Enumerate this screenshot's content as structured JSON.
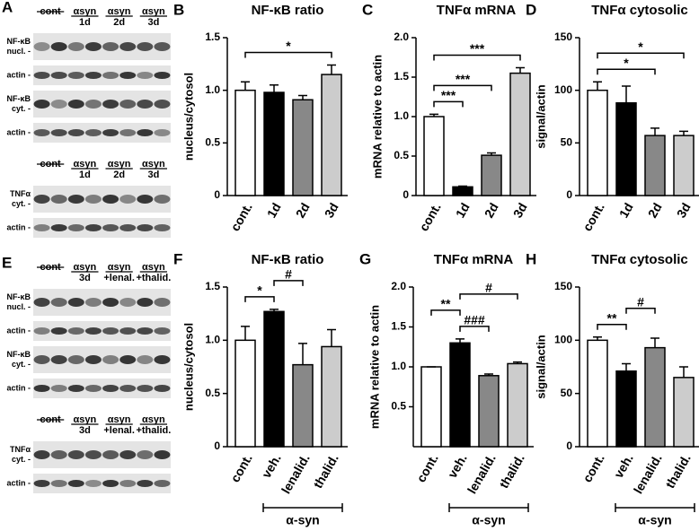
{
  "blots": [
    {
      "panel": "A",
      "groups": [
        {
          "headers": [
            {
              "lines": [
                "cont"
              ]
            },
            {
              "lines": [
                "αsyn",
                "1d"
              ]
            },
            {
              "lines": [
                "αsyn",
                "2d"
              ]
            },
            {
              "lines": [
                "αsyn",
                "3d"
              ]
            }
          ],
          "rows": [
            {
              "lines": [
                "NF-κB",
                "nucl. -"
              ]
            },
            {
              "lines": [
                "actin -"
              ]
            },
            {
              "lines": [
                "NF-κB",
                "cyt. -"
              ]
            },
            {
              "lines": [
                "actin -"
              ]
            }
          ]
        },
        {
          "headers": [
            {
              "lines": [
                "cont"
              ]
            },
            {
              "lines": [
                "αsyn",
                "1d"
              ]
            },
            {
              "lines": [
                "αsyn",
                "2d"
              ]
            },
            {
              "lines": [
                "αsyn",
                "3d"
              ]
            }
          ],
          "rows": [
            {
              "lines": [
                "TNFα",
                "cyt. -"
              ]
            },
            {
              "lines": [
                "actin -"
              ]
            }
          ]
        }
      ]
    },
    {
      "panel": "E",
      "groups": [
        {
          "headers": [
            {
              "lines": [
                "cont"
              ]
            },
            {
              "lines": [
                "αsyn",
                "3d"
              ]
            },
            {
              "lines": [
                "αsyn",
                "+lenal."
              ]
            },
            {
              "lines": [
                "αsyn",
                "+thalid."
              ]
            }
          ],
          "rows": [
            {
              "lines": [
                "NF-κB",
                "nucl. -"
              ]
            },
            {
              "lines": [
                "actin -"
              ]
            },
            {
              "lines": [
                "NF-κB",
                "cyt. -"
              ]
            },
            {
              "lines": [
                "actin -"
              ]
            }
          ]
        },
        {
          "headers": [
            {
              "lines": [
                "cont"
              ]
            },
            {
              "lines": [
                "αsyn",
                "3d"
              ]
            },
            {
              "lines": [
                "αsyn",
                "+lenal."
              ]
            },
            {
              "lines": [
                "αsyn",
                "+thalid."
              ]
            }
          ],
          "rows": [
            {
              "lines": [
                "TNFα",
                "cyt. -"
              ]
            },
            {
              "lines": [
                "actin -"
              ]
            }
          ]
        }
      ]
    }
  ],
  "chart_data": [
    {
      "type": "bar",
      "panel": "B",
      "title": "NF-κB ratio",
      "ylabel": "nucleus/cytosol",
      "categories": [
        "cont.",
        "1d",
        "2d",
        "3d"
      ],
      "values": [
        1.0,
        0.98,
        0.91,
        1.15
      ],
      "errors": [
        0.08,
        0.07,
        0.04,
        0.09
      ],
      "colors": [
        "#ffffff",
        "#000000",
        "#888888",
        "#cccccc"
      ],
      "ylim": [
        0,
        1.5
      ],
      "yticks": [
        0,
        0.5,
        {
          "value": 1,
          "label": "1.0"
        },
        1.5
      ],
      "annotations": [
        {
          "from": 0,
          "to": 3,
          "text": "*"
        }
      ]
    },
    {
      "type": "bar",
      "panel": "C",
      "title": "TNFα mRNA",
      "ylabel": "mRNA relative to actin",
      "categories": [
        "cont.",
        "1d",
        "2d",
        "3d"
      ],
      "values": [
        1.0,
        0.11,
        0.51,
        1.55
      ],
      "errors": [
        0.03,
        0.01,
        0.03,
        0.07
      ],
      "colors": [
        "#ffffff",
        "#000000",
        "#888888",
        "#cccccc"
      ],
      "ylim": [
        0,
        2
      ],
      "yticks": [
        0,
        0.5,
        {
          "value": 1,
          "label": "1.0"
        },
        1.5,
        {
          "value": 2,
          "label": "2.0"
        }
      ],
      "annotations": [
        {
          "from": 0,
          "to": 1,
          "text": "***"
        },
        {
          "from": 0,
          "to": 2,
          "text": "***"
        },
        {
          "from": 0,
          "to": 3,
          "text": "***"
        }
      ]
    },
    {
      "type": "bar",
      "panel": "D",
      "title": "TNFα cytosolic",
      "ylabel": "signal/actin",
      "categories": [
        "cont.",
        "1d",
        "2d",
        "3d"
      ],
      "values": [
        100,
        88,
        57,
        57
      ],
      "errors": [
        8,
        16,
        7,
        4
      ],
      "colors": [
        "#ffffff",
        "#000000",
        "#888888",
        "#cccccc"
      ],
      "ylim": [
        0,
        150
      ],
      "yticks": [
        0,
        50,
        100,
        150
      ],
      "annotations": [
        {
          "from": 0,
          "to": 2,
          "text": "*"
        },
        {
          "from": 0,
          "to": 3,
          "text": "*"
        }
      ]
    },
    {
      "type": "bar",
      "panel": "F",
      "title": "NF-κB ratio",
      "ylabel": "nucleus/cytosol",
      "categories": [
        "cont.",
        "veh.",
        "lenalid.",
        "thalid."
      ],
      "values": [
        1.0,
        1.27,
        0.77,
        0.94
      ],
      "errors": [
        0.13,
        0.02,
        0.2,
        0.16
      ],
      "colors": [
        "#ffffff",
        "#000000",
        "#888888",
        "#cccccc"
      ],
      "ylim": [
        0,
        1.5
      ],
      "yticks": [
        0,
        0.5,
        {
          "value": 1,
          "label": "1.0"
        },
        1.5
      ],
      "annotations": [
        {
          "from": 0,
          "to": 1,
          "text": "*"
        },
        {
          "from": 1,
          "to": 2,
          "text": "#"
        }
      ],
      "group": {
        "label": "α-syn",
        "from": 1,
        "to": 3
      }
    },
    {
      "type": "bar",
      "panel": "G",
      "title": "TNFα mRNA",
      "ylabel": "mRNA relative to actin",
      "categories": [
        "cont.",
        "veh.",
        "lenalid.",
        "thalid."
      ],
      "values": [
        1.0,
        1.3,
        0.89,
        1.04
      ],
      "errors": [
        0,
        0.05,
        0.02,
        0.02
      ],
      "colors": [
        "#ffffff",
        "#000000",
        "#888888",
        "#cccccc"
      ],
      "ylim": [
        0,
        2
      ],
      "yticks": [
        0.5,
        {
          "value": 1,
          "label": "1.0"
        },
        1.5,
        {
          "value": 2,
          "label": "2.0"
        }
      ],
      "annotations": [
        {
          "from": 1,
          "to": 2,
          "text": "###"
        },
        {
          "from": 0,
          "to": 1,
          "text": "**"
        },
        {
          "from": 1,
          "to": 3,
          "text": "#"
        }
      ],
      "group": {
        "label": "α-syn",
        "from": 1,
        "to": 3
      }
    },
    {
      "type": "bar",
      "panel": "H",
      "title": "TNFα cytosolic",
      "ylabel": "signal/actin",
      "categories": [
        "cont.",
        "veh.",
        "lenalid.",
        "thalid."
      ],
      "values": [
        100,
        71,
        93,
        65
      ],
      "errors": [
        3,
        7,
        9,
        10
      ],
      "colors": [
        "#ffffff",
        "#000000",
        "#888888",
        "#cccccc"
      ],
      "ylim": [
        0,
        150
      ],
      "yticks": [
        0,
        50,
        100,
        150
      ],
      "annotations": [
        {
          "from": 0,
          "to": 1,
          "text": "**"
        },
        {
          "from": 1,
          "to": 2,
          "text": "#"
        }
      ],
      "group": {
        "label": "α-syn",
        "from": 1,
        "to": 3
      }
    }
  ]
}
